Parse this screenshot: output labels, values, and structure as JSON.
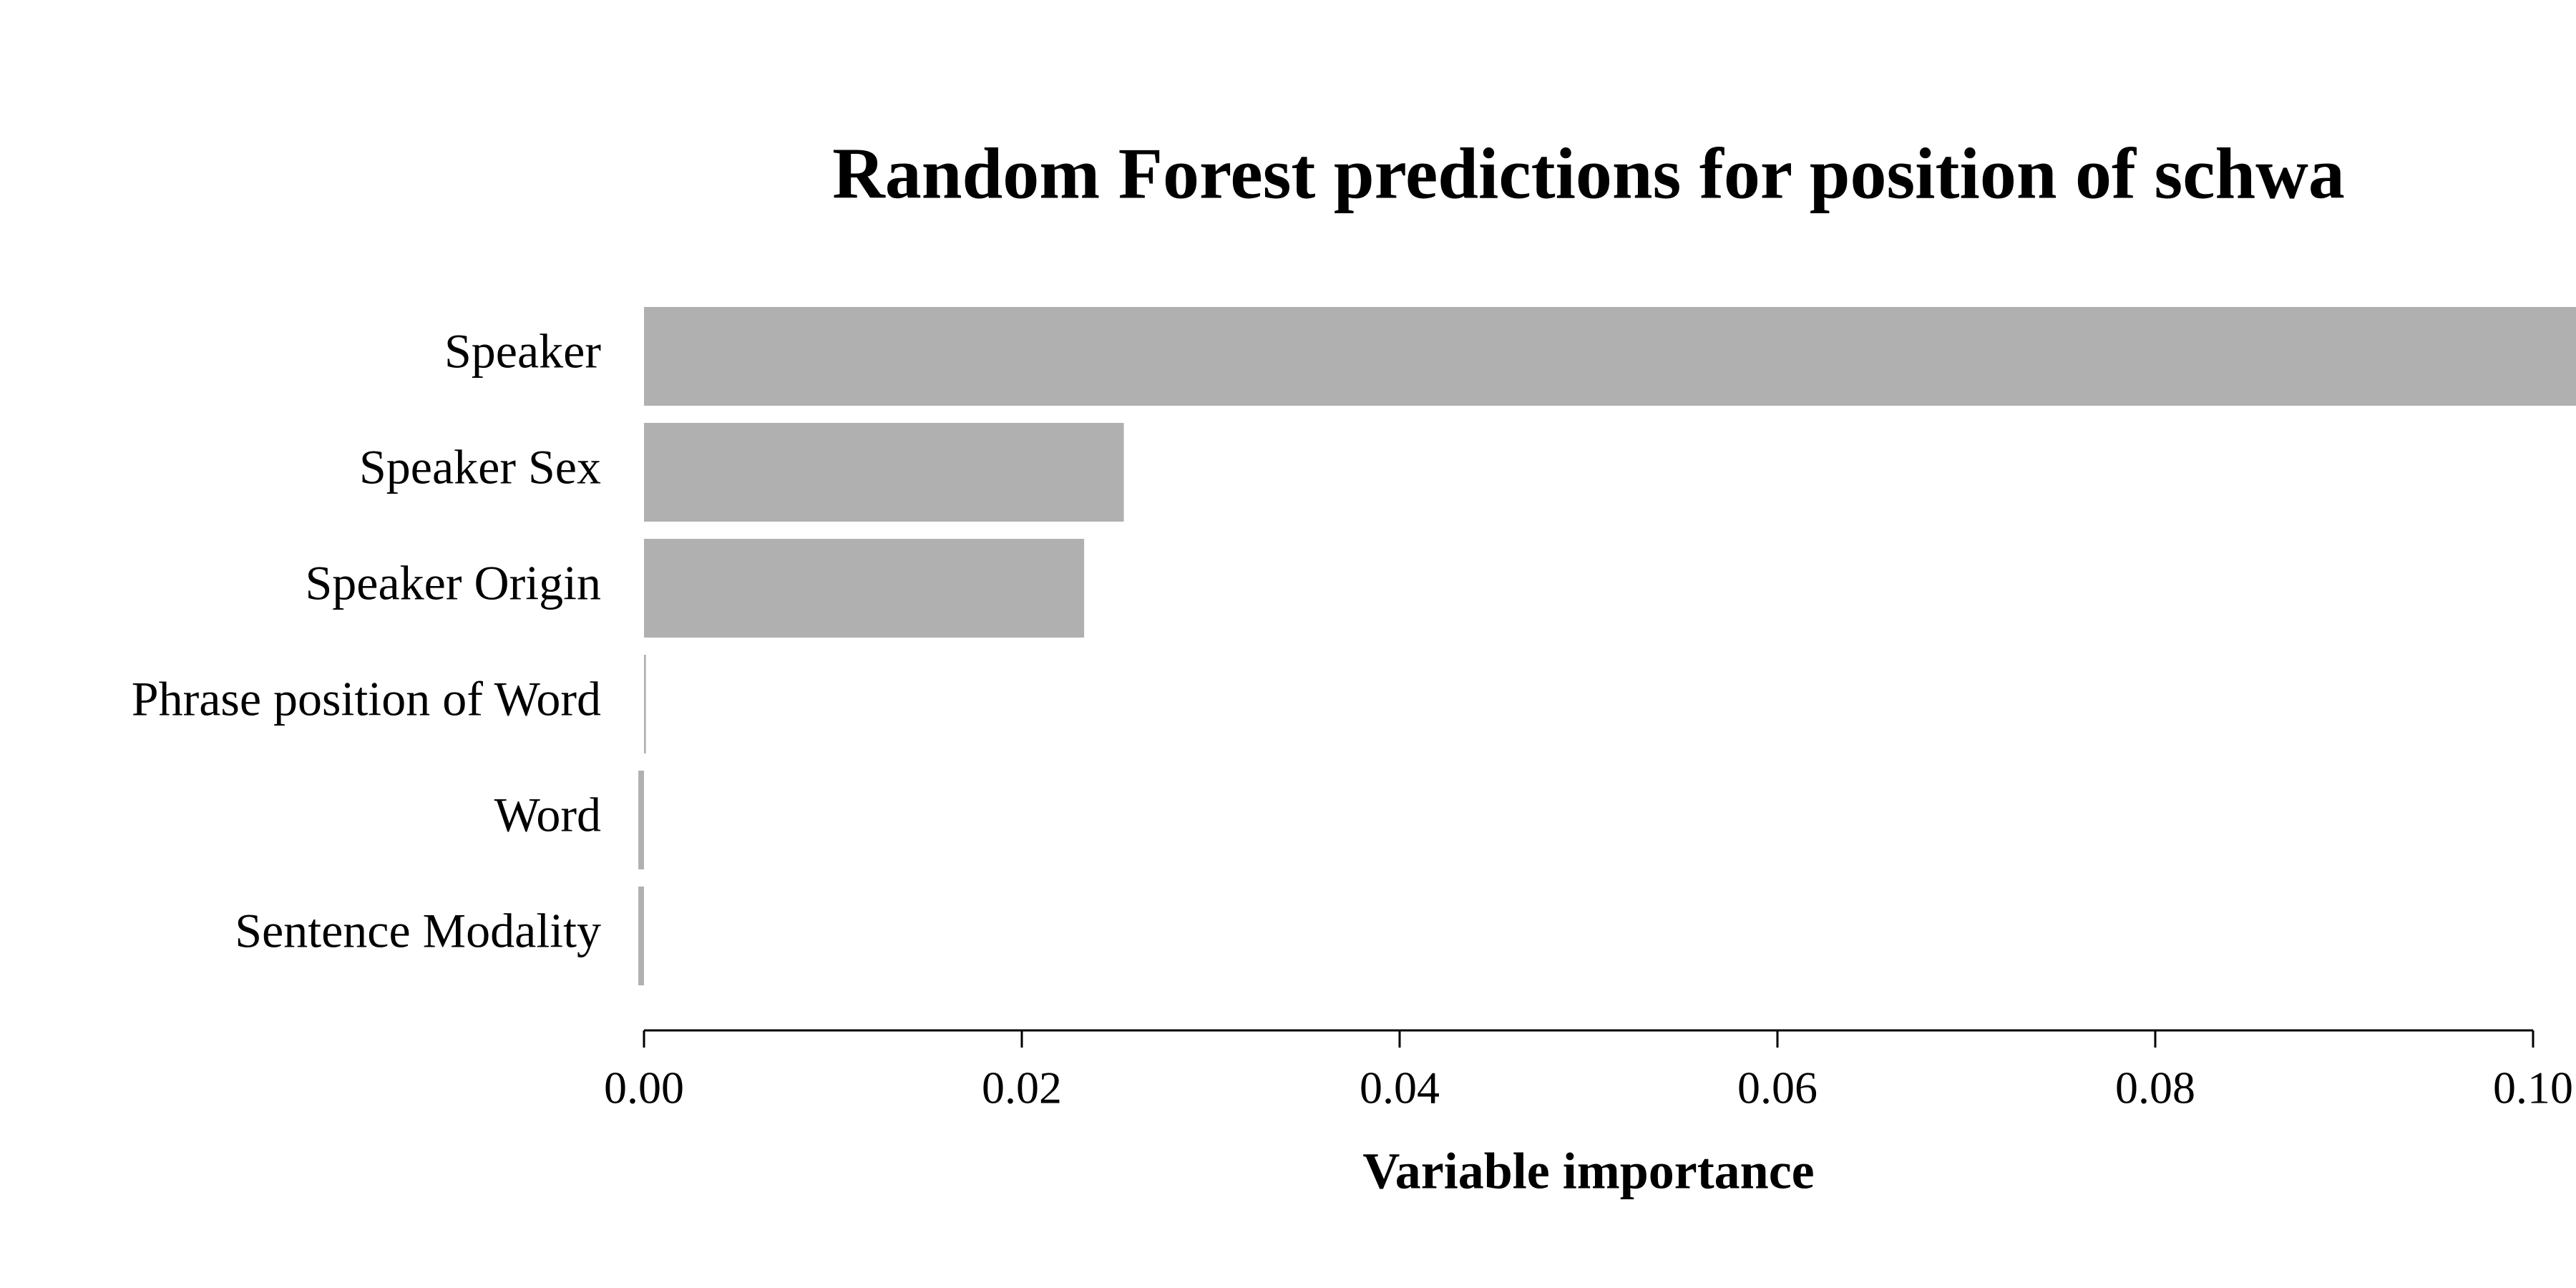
{
  "chart_data": {
    "type": "barh",
    "title": "Random Forest predictions for position of schwa",
    "x_label": "Variable importance",
    "categories": [
      "Speaker",
      "Speaker Sex",
      "Speaker Origin",
      "Phrase position of Word",
      "Word",
      "Sentence Modality"
    ],
    "values": [
      0.105,
      0.0254,
      0.0233,
      0.0001,
      -0.0003,
      -0.0003
    ],
    "color": "#b0b0b0",
    "xlim": [
      0,
      0.1
    ],
    "xticks": [
      {
        "value": 0,
        "label": "0.00"
      },
      {
        "value": 0.02,
        "label": "0.02"
      },
      {
        "value": 0.04,
        "label": "0.04"
      },
      {
        "value": 0.06,
        "label": "0.06"
      },
      {
        "value": 0.08,
        "label": "0.08"
      },
      {
        "value": 0.1,
        "label": "0.10"
      }
    ],
    "grid": false
  }
}
